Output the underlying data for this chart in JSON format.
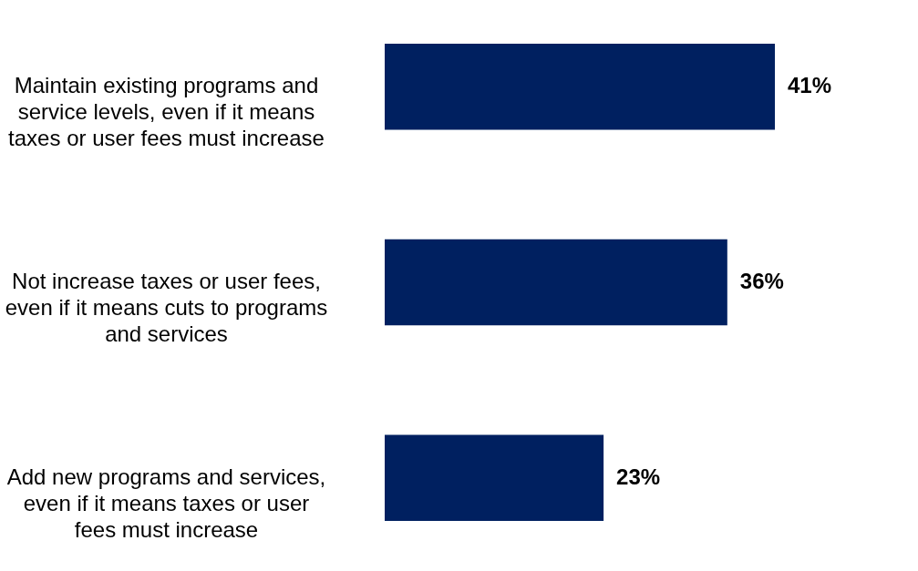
{
  "chart_data": {
    "type": "bar",
    "orientation": "horizontal",
    "categories": [
      "Maintain existing programs and service levels, even if it means taxes or user fees must increase",
      "Not increase taxes or user fees, even if it means cuts to programs and services",
      "Add new programs and services, even if it means taxes or user fees must increase"
    ],
    "values": [
      41,
      36,
      23
    ],
    "color": "#002060",
    "value_labels": [
      "41%",
      "36%",
      "23%"
    ]
  }
}
